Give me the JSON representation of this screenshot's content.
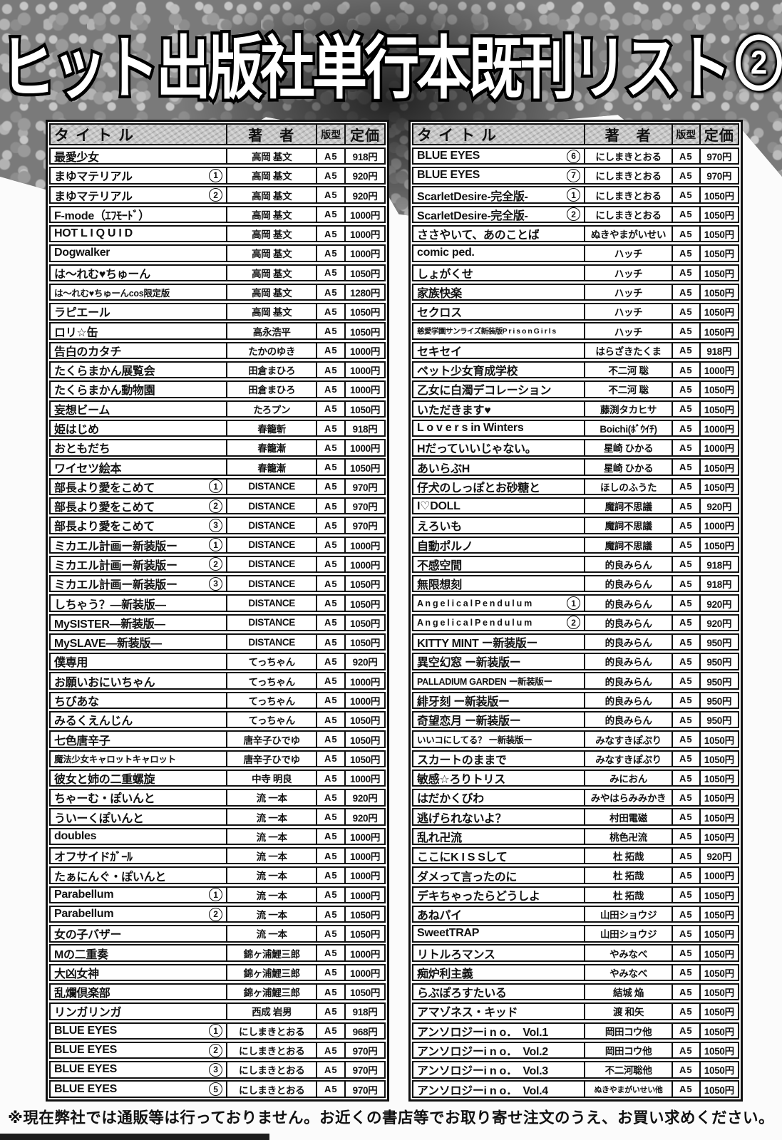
{
  "header": {
    "title_main": "ヒット出版社単行本既刊リスト",
    "title_number": "2"
  },
  "table_headers": {
    "title": "タイトル",
    "author": "著　者",
    "format": "版型",
    "price": "定価"
  },
  "colors": {
    "ink": "#111111",
    "paper": "#ffffff",
    "header_cell_bg": "#c7c7c7",
    "texture_gray": "#7a7a7a"
  },
  "tables": {
    "left": {
      "rows": [
        {
          "t": "最愛少女",
          "a": "高岡 基文",
          "f": "A5",
          "p": "918円"
        },
        {
          "t": "まゆマテリアル",
          "n": "1",
          "a": "高岡 基文",
          "f": "A5",
          "p": "920円"
        },
        {
          "t": "まゆマテリアル",
          "n": "2",
          "a": "高岡 基文",
          "f": "A5",
          "p": "920円"
        },
        {
          "t": "F-mode（ｴﾌﾓｰﾄﾞ）",
          "a": "高岡 基文",
          "f": "A5",
          "p": "1000円"
        },
        {
          "t": "HOT L I Q U I D",
          "a": "高岡 基文",
          "f": "A5",
          "p": "1000円"
        },
        {
          "t": "Dogwalker",
          "a": "高岡 基文",
          "f": "A5",
          "p": "1000円"
        },
        {
          "t": "は〜れむ♥ちゅーん",
          "a": "高岡 基文",
          "f": "A5",
          "p": "1050円"
        },
        {
          "t": "は〜れむ♥ちゅーんcos限定版",
          "cls": "sm",
          "a": "高岡 基文",
          "f": "A5",
          "p": "1280円"
        },
        {
          "t": "ラピエール",
          "a": "高岡 基文",
          "f": "A5",
          "p": "1050円"
        },
        {
          "t": "ロリ☆缶",
          "a": "高永浩平",
          "f": "A5",
          "p": "1050円"
        },
        {
          "t": "告白のカタチ",
          "a": "たかのゆき",
          "f": "A5",
          "p": "1000円"
        },
        {
          "t": "たくらまかん展覧会",
          "a": "田倉まひろ",
          "f": "A5",
          "p": "1000円"
        },
        {
          "t": "たくらまかん動物園",
          "a": "田倉まひろ",
          "f": "A5",
          "p": "1000円"
        },
        {
          "t": "妄想ビーム",
          "a": "たろプン",
          "f": "A5",
          "p": "1050円"
        },
        {
          "t": "姫はじめ",
          "a": "春籠斬",
          "f": "A5",
          "p": "918円"
        },
        {
          "t": "おともだち",
          "a": "春籠漸",
          "f": "A5",
          "p": "1000円"
        },
        {
          "t": "ワイセツ絵本",
          "a": "春籠漸",
          "f": "A5",
          "p": "1050円"
        },
        {
          "t": "部長より愛をこめて",
          "n": "1",
          "a": "DISTANCE",
          "f": "A5",
          "p": "970円"
        },
        {
          "t": "部長より愛をこめて",
          "n": "2",
          "a": "DISTANCE",
          "f": "A5",
          "p": "970円"
        },
        {
          "t": "部長より愛をこめて",
          "n": "3",
          "a": "DISTANCE",
          "f": "A5",
          "p": "970円"
        },
        {
          "t": "ミカエル計画ー新装版ー",
          "n": "1",
          "a": "DISTANCE",
          "f": "A5",
          "p": "1000円"
        },
        {
          "t": "ミカエル計画ー新装版ー",
          "n": "2",
          "a": "DISTANCE",
          "f": "A5",
          "p": "1000円"
        },
        {
          "t": "ミカエル計画ー新装版ー",
          "n": "3",
          "a": "DISTANCE",
          "f": "A5",
          "p": "1050円"
        },
        {
          "t": "しちゃう？―新装版―",
          "a": "DISTANCE",
          "f": "A5",
          "p": "1050円"
        },
        {
          "t": "MySISTER―新装版―",
          "a": "DISTANCE",
          "f": "A5",
          "p": "1050円"
        },
        {
          "t": "MySLAVE―新装版―",
          "a": "DISTANCE",
          "f": "A5",
          "p": "1050円"
        },
        {
          "t": "僕専用",
          "a": "てっちゃん",
          "f": "A5",
          "p": "920円"
        },
        {
          "t": "お願いおにいちゃん",
          "a": "てっちゃん",
          "f": "A5",
          "p": "1000円"
        },
        {
          "t": "ちびあな",
          "a": "てっちゃん",
          "f": "A5",
          "p": "1000円"
        },
        {
          "t": "みるくえんじん",
          "a": "てっちゃん",
          "f": "A5",
          "p": "1050円"
        },
        {
          "t": "七色唐辛子",
          "a": "唐辛子ひでゆ",
          "f": "A5",
          "p": "1050円"
        },
        {
          "t": "魔法少女キャロットキャロット",
          "cls": "sm",
          "a": "唐辛子ひでゆ",
          "f": "A5",
          "p": "1050円"
        },
        {
          "t": "彼女と姉の二重螺旋",
          "a": "中寺 明良",
          "f": "A5",
          "p": "1000円"
        },
        {
          "t": "ちゃーむ・ぽいんと",
          "a": "流 一本",
          "f": "A5",
          "p": "920円"
        },
        {
          "t": "ういーくぽいんと",
          "a": "流 一本",
          "f": "A5",
          "p": "920円"
        },
        {
          "t": "doubles",
          "a": "流 一本",
          "f": "A5",
          "p": "1000円"
        },
        {
          "t": "オフサイドｶﾞｰﾙ",
          "a": "流 一本",
          "f": "A5",
          "p": "1000円"
        },
        {
          "t": "たぁにんぐ・ぽいんと",
          "a": "流 一本",
          "f": "A5",
          "p": "1000円"
        },
        {
          "t": "Parabellum",
          "n": "1",
          "a": "流 一本",
          "f": "A5",
          "p": "1000円"
        },
        {
          "t": "Parabellum",
          "n": "2",
          "a": "流 一本",
          "f": "A5",
          "p": "1050円"
        },
        {
          "t": "女の子バザー",
          "a": "流 一本",
          "f": "A5",
          "p": "1050円"
        },
        {
          "t": "Mの二重奏",
          "a": "錦ヶ浦鯉三郎",
          "f": "A5",
          "p": "1000円"
        },
        {
          "t": "大凶女神",
          "a": "錦ヶ浦鯉三郎",
          "f": "A5",
          "p": "1000円"
        },
        {
          "t": "乱爛倶楽部",
          "a": "錦ヶ浦鯉三郎",
          "f": "A5",
          "p": "1050円"
        },
        {
          "t": "リンガリンガ",
          "a": "西成 岩男",
          "f": "A5",
          "p": "918円"
        },
        {
          "t": "BLUE EYES",
          "n": "1",
          "a": "にしまきとおる",
          "f": "A5",
          "p": "968円"
        },
        {
          "t": "BLUE EYES",
          "n": "2",
          "a": "にしまきとおる",
          "f": "A5",
          "p": "970円"
        },
        {
          "t": "BLUE EYES",
          "n": "3",
          "a": "にしまきとおる",
          "f": "A5",
          "p": "970円"
        },
        {
          "t": "BLUE EYES",
          "n": "5",
          "a": "にしまきとおる",
          "f": "A5",
          "p": "970円"
        }
      ]
    },
    "right": {
      "rows": [
        {
          "t": "BLUE EYES",
          "n": "6",
          "a": "にしまきとおる",
          "f": "A5",
          "p": "970円"
        },
        {
          "t": "BLUE EYES",
          "n": "7",
          "a": "にしまきとおる",
          "f": "A5",
          "p": "970円"
        },
        {
          "t": "ScarletDesire-完全版-",
          "n": "1",
          "a": "にしまきとおる",
          "f": "A5",
          "p": "1050円"
        },
        {
          "t": "ScarletDesire-完全版-",
          "n": "2",
          "a": "にしまきとおる",
          "f": "A5",
          "p": "1050円"
        },
        {
          "t": "ささやいて、あのことば",
          "a": "ぬきやまがいせい",
          "f": "A5",
          "p": "1050円"
        },
        {
          "t": "comic ped.",
          "a": "ハッチ",
          "f": "A5",
          "p": "1050円"
        },
        {
          "t": "しょがくせ",
          "a": "ハッチ",
          "f": "A5",
          "p": "1050円"
        },
        {
          "t": "家族快楽",
          "a": "ハッチ",
          "f": "A5",
          "p": "1050円"
        },
        {
          "t": "セクロス",
          "a": "ハッチ",
          "f": "A5",
          "p": "1050円"
        },
        {
          "t": "慈愛学園サンライズ新装版P r i s o n G i r l s",
          "cls": "xs",
          "a": "ハッチ",
          "f": "A5",
          "p": "1050円"
        },
        {
          "t": "セキセイ",
          "a": "はらざきたくま",
          "f": "A5",
          "p": "918円"
        },
        {
          "t": "ペット少女育成学校",
          "a": "不二河 聡",
          "f": "A5",
          "p": "1000円"
        },
        {
          "t": "乙女に白濁デコレーション",
          "a": "不二河 聡",
          "f": "A5",
          "p": "1050円"
        },
        {
          "t": "いただきます♥",
          "a": "藤渕タカヒサ",
          "f": "A5",
          "p": "1050円"
        },
        {
          "t": "L o v e r s in Winters",
          "a": "Boichi(ﾎﾞｳｲﾁ)",
          "f": "A5",
          "p": "1000円"
        },
        {
          "t": "Hだっていいじゃない。",
          "a": "星崎 ひかる",
          "f": "A5",
          "p": "1000円"
        },
        {
          "t": "あいらぶH",
          "a": "星崎 ひかる",
          "f": "A5",
          "p": "1050円"
        },
        {
          "t": "仔犬のしっぽとお砂糖と",
          "a": "ほしのふうた",
          "f": "A5",
          "p": "1050円"
        },
        {
          "t": "I♡DOLL",
          "a": "魔詞不思議",
          "f": "A5",
          "p": "920円"
        },
        {
          "t": "えろいも",
          "a": "魔詞不思議",
          "f": "A5",
          "p": "1000円"
        },
        {
          "t": "自動ポルノ",
          "a": "魔詞不思議",
          "f": "A5",
          "p": "1050円"
        },
        {
          "t": "不感空間",
          "a": "的良みらん",
          "f": "A5",
          "p": "918円"
        },
        {
          "t": "無限想刻",
          "a": "的良みらん",
          "f": "A5",
          "p": "918円"
        },
        {
          "t": "A n g e l i c a l P e n d u l u m",
          "cls": "sm",
          "n": "1",
          "a": "的良みらん",
          "f": "A5",
          "p": "920円"
        },
        {
          "t": "A n g e l i c a l P e n d u l u m",
          "cls": "sm",
          "n": "2",
          "a": "的良みらん",
          "f": "A5",
          "p": "920円"
        },
        {
          "t": "KITTY MINT ー新装版ー",
          "a": "的良みらん",
          "f": "A5",
          "p": "950円"
        },
        {
          "t": "異空幻窓 ー新装版ー",
          "a": "的良みらん",
          "f": "A5",
          "p": "950円"
        },
        {
          "t": "PALLADIUM GARDEN ー新装版ー",
          "cls": "sm",
          "a": "的良みらん",
          "f": "A5",
          "p": "950円"
        },
        {
          "t": "緋牙刻 ー新装版ー",
          "a": "的良みらん",
          "f": "A5",
          "p": "950円"
        },
        {
          "t": "奇望恋月 ー新装版ー",
          "a": "的良みらん",
          "f": "A5",
          "p": "950円"
        },
        {
          "t": "いいコにしてる？ ー新装版ー",
          "cls": "sm",
          "a": "みなすきぽぷり",
          "f": "A5",
          "p": "1050円"
        },
        {
          "t": "スカートのままで",
          "a": "みなすきぽぷり",
          "f": "A5",
          "p": "1050円"
        },
        {
          "t": "敏感☆ろりトリス",
          "a": "みにおん",
          "f": "A5",
          "p": "1050円"
        },
        {
          "t": "はだかくびわ",
          "a": "みやはらみみかき",
          "f": "A5",
          "p": "1050円"
        },
        {
          "t": "逃げられないよ？",
          "a": "村田電磁",
          "f": "A5",
          "p": "1050円"
        },
        {
          "t": "乱れ卍流",
          "a": "桃色卍流",
          "f": "A5",
          "p": "1050円"
        },
        {
          "t": "ここにK I S Sして",
          "a": "杜 拓哉",
          "f": "A5",
          "p": "920円"
        },
        {
          "t": "ダメって言ったのに",
          "a": "杜 拓哉",
          "f": "A5",
          "p": "1000円"
        },
        {
          "t": "デキちゃったらどうしよ",
          "a": "杜 拓哉",
          "f": "A5",
          "p": "1050円"
        },
        {
          "t": "あねパイ",
          "a": "山田ショウジ",
          "f": "A5",
          "p": "1050円"
        },
        {
          "t": "SweetTRAP",
          "a": "山田ショウジ",
          "f": "A5",
          "p": "1050円"
        },
        {
          "t": "リトルろマンス",
          "a": "やみなべ",
          "f": "A5",
          "p": "1050円"
        },
        {
          "t": "痴炉利主義",
          "a": "やみなべ",
          "f": "A5",
          "p": "1050円"
        },
        {
          "t": "らぶぽろすたいる",
          "a": "結城 焔",
          "f": "A5",
          "p": "1050円"
        },
        {
          "t": "アマゾネス・キッド",
          "a": "渡 和矢",
          "f": "A5",
          "p": "1050円"
        },
        {
          "t": "アンソロジーi n o．　Vol.1",
          "a": "岡田コウ他",
          "f": "A5",
          "p": "1050円"
        },
        {
          "t": "アンソロジーi n o．　Vol.2",
          "a": "岡田コウ他",
          "f": "A5",
          "p": "1050円"
        },
        {
          "t": "アンソロジーi n o．　Vol.3",
          "a": "不二河聡他",
          "f": "A5",
          "p": "1050円"
        },
        {
          "t": "アンソロジーi n o．　Vol.4",
          "a": "ぬきやまがいせい他",
          "as": true,
          "f": "A5",
          "p": "1050円"
        }
      ]
    }
  },
  "footer": {
    "note": "※現在弊社では通販等は行っておりません。お近くの書店等でお取り寄せ注文のうえ、お買い求めください。"
  }
}
